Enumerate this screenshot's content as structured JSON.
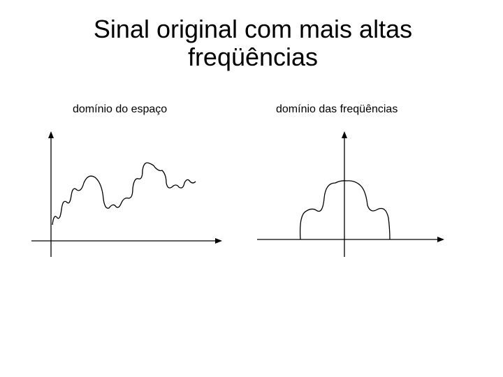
{
  "title": {
    "lines": [
      "Sinal original com mais altas",
      "freqüências"
    ]
  },
  "panels": [
    {
      "label": "domínio do espaço"
    },
    {
      "label": "domínio das freqüências"
    }
  ]
}
